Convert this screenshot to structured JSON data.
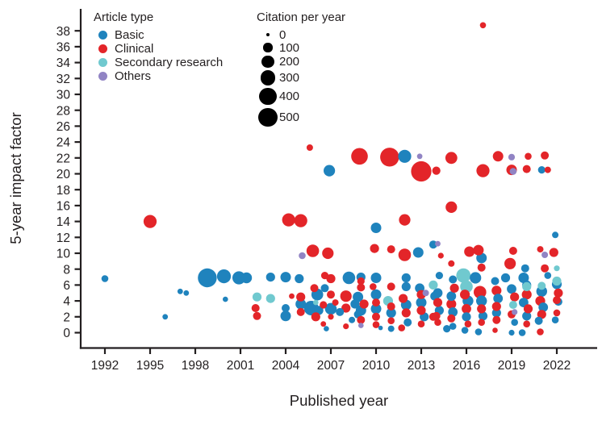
{
  "chart_data": {
    "type": "scatter",
    "xlabel": "Published year",
    "ylabel": "5-year impact factor",
    "x_ticks": [
      1992,
      1995,
      1998,
      2001,
      2004,
      2007,
      2010,
      2013,
      2016,
      2019,
      2022
    ],
    "y_ticks": [
      0,
      2,
      4,
      6,
      8,
      10,
      12,
      14,
      16,
      18,
      20,
      22,
      24,
      26,
      28,
      30,
      32,
      34,
      36,
      38
    ],
    "xlim": [
      1990.4,
      2024.6
    ],
    "ylim": [
      -1.9,
      40.9
    ],
    "grid": false,
    "legend": {
      "title": "Article type",
      "position": "top-left-inside",
      "items": [
        {
          "label": "Basic",
          "color": "#1f83bd"
        },
        {
          "label": "Clinical",
          "color": "#e32529"
        },
        {
          "label": "Secondary research",
          "color": "#70c9cf"
        },
        {
          "label": "Others",
          "color": "#9184c4"
        }
      ]
    },
    "size_legend": {
      "title": "Citation per year",
      "values": [
        0,
        100,
        200,
        300,
        400,
        500
      ],
      "color": "#000000"
    },
    "point_format": [
      "published_year",
      "five_year_impact_factor",
      "citations_per_year"
    ],
    "series": [
      {
        "name": "Basic",
        "color": "#1f83bd",
        "points": [
          [
            1992,
            6.8,
            50
          ],
          [
            1996,
            2,
            25
          ],
          [
            1997,
            5.2,
            25
          ],
          [
            1997.4,
            5,
            25
          ],
          [
            1998.8,
            6.9,
            500
          ],
          [
            1999.9,
            7.1,
            260
          ],
          [
            2000.9,
            6.9,
            230
          ],
          [
            2001.4,
            6.9,
            150
          ],
          [
            2000,
            4.2,
            20
          ],
          [
            2003,
            7,
            100
          ],
          [
            2004,
            7,
            140
          ],
          [
            2004.9,
            6.8,
            100
          ],
          [
            2004,
            3.1,
            75
          ],
          [
            2004,
            2.1,
            140
          ],
          [
            2005,
            3.6,
            140
          ],
          [
            2005.7,
            3.1,
            290
          ],
          [
            2006.1,
            4.8,
            180
          ],
          [
            2006.2,
            2.8,
            100
          ],
          [
            2006.6,
            5.6,
            75
          ],
          [
            2006.7,
            0.5,
            20
          ],
          [
            2007,
            3,
            180
          ],
          [
            2007.6,
            2.6,
            75
          ],
          [
            2006.9,
            20.4,
            170
          ],
          [
            2008.2,
            6.9,
            210
          ],
          [
            2008.6,
            3.6,
            100
          ],
          [
            2008.8,
            2.3,
            75
          ],
          [
            2008.8,
            4.5,
            140
          ],
          [
            2008.4,
            1.6,
            40
          ],
          [
            2009,
            7,
            100
          ],
          [
            2009,
            2.8,
            140
          ],
          [
            2010,
            13.2,
            140
          ],
          [
            2010,
            6.9,
            140
          ],
          [
            2010,
            4.8,
            140
          ],
          [
            2010,
            3,
            140
          ],
          [
            2010.3,
            0.6,
            10
          ],
          [
            2011,
            2.5,
            120
          ],
          [
            2011,
            0.5,
            40
          ],
          [
            2011.9,
            22.2,
            230
          ],
          [
            2012,
            6.9,
            100
          ],
          [
            2012,
            5.8,
            100
          ],
          [
            2012,
            3.5,
            140
          ],
          [
            2012.1,
            1.3,
            75
          ],
          [
            2012.8,
            10.1,
            140
          ],
          [
            2012.9,
            5.6,
            110
          ],
          [
            2013,
            3.8,
            140
          ],
          [
            2013.2,
            2,
            100
          ],
          [
            2013.8,
            11.1,
            75
          ],
          [
            2014.2,
            7.2,
            60
          ],
          [
            2013.9,
            4.6,
            100
          ],
          [
            2014.1,
            5,
            110
          ],
          [
            2014.2,
            2.8,
            100
          ],
          [
            2014.7,
            0.5,
            60
          ],
          [
            2015,
            4.6,
            110
          ],
          [
            2015.1,
            2.6,
            110
          ],
          [
            2015.1,
            0.8,
            50
          ],
          [
            2015.1,
            6.7,
            75
          ],
          [
            2016.1,
            4,
            150
          ],
          [
            2016,
            2,
            100
          ],
          [
            2015.9,
            0.3,
            50
          ],
          [
            2016.6,
            6.9,
            170
          ],
          [
            2016.8,
            0.1,
            50
          ],
          [
            2017,
            9.4,
            140
          ],
          [
            2017,
            4,
            150
          ],
          [
            2017.1,
            2.1,
            100
          ],
          [
            2017.9,
            6.5,
            75
          ],
          [
            2018.1,
            4.3,
            110
          ],
          [
            2018,
            2.5,
            100
          ],
          [
            2018.6,
            6.9,
            100
          ],
          [
            2019,
            5.5,
            110
          ],
          [
            2019.2,
            1.3,
            50
          ],
          [
            2019,
            0,
            30
          ],
          [
            2019.8,
            6.9,
            140
          ],
          [
            2019.9,
            8.1,
            75
          ],
          [
            2019.8,
            3.8,
            110
          ],
          [
            2020,
            2.1,
            100
          ],
          [
            2020,
            6,
            100
          ],
          [
            2019.7,
            0,
            50
          ],
          [
            2021,
            20.5,
            60
          ],
          [
            2021,
            5.2,
            150
          ],
          [
            2021.1,
            3.2,
            110
          ],
          [
            2020.8,
            1.5,
            75
          ],
          [
            2021.4,
            7.2,
            50
          ],
          [
            2021.9,
            12.3,
            40
          ],
          [
            2022,
            6.1,
            120
          ],
          [
            2022.1,
            3.9,
            75
          ],
          [
            2021.9,
            1.6,
            50
          ]
        ]
      },
      {
        "name": "Clinical",
        "color": "#e32529",
        "points": [
          [
            1995,
            14,
            230
          ],
          [
            2002,
            3.1,
            75
          ],
          [
            2002.1,
            2.1,
            75
          ],
          [
            2004.2,
            14.2,
            230
          ],
          [
            2005,
            14.1,
            230
          ],
          [
            2004.4,
            4.6,
            25
          ],
          [
            2005,
            4.5,
            100
          ],
          [
            2005,
            2.6,
            75
          ],
          [
            2005.9,
            5.6,
            75
          ],
          [
            2005.6,
            23.3,
            40
          ],
          [
            2005.8,
            10.3,
            210
          ],
          [
            2006,
            2,
            100
          ],
          [
            2006.5,
            3.5,
            60
          ],
          [
            2006.5,
            1.1,
            25
          ],
          [
            2006.8,
            10,
            170
          ],
          [
            2006.6,
            7.2,
            60
          ],
          [
            2007,
            6.8,
            100
          ],
          [
            2007,
            4.8,
            75
          ],
          [
            2007,
            2,
            30
          ],
          [
            2007.3,
            3.8,
            40
          ],
          [
            2008,
            4.6,
            170
          ],
          [
            2008,
            3.1,
            100
          ],
          [
            2008,
            0.8,
            30
          ],
          [
            2008.9,
            22.2,
            380
          ],
          [
            2009,
            6.5,
            60
          ],
          [
            2009,
            5.7,
            75
          ],
          [
            2009.2,
            3.6,
            100
          ],
          [
            2009,
            1.6,
            75
          ],
          [
            2009.8,
            5.8,
            50
          ],
          [
            2009.9,
            10.6,
            100
          ],
          [
            2010,
            3.8,
            75
          ],
          [
            2010,
            2,
            75
          ],
          [
            2010,
            1,
            50
          ],
          [
            2010.9,
            22.1,
            500
          ],
          [
            2011,
            10.5,
            75
          ],
          [
            2011,
            5.8,
            75
          ],
          [
            2011,
            3.3,
            75
          ],
          [
            2011,
            1.5,
            50
          ],
          [
            2011.7,
            0.6,
            50
          ],
          [
            2011.9,
            14.2,
            170
          ],
          [
            2011.9,
            9.8,
            210
          ],
          [
            2011.8,
            4.3,
            100
          ],
          [
            2012,
            2.5,
            100
          ],
          [
            2013,
            20.3,
            580
          ],
          [
            2013,
            4.8,
            100
          ],
          [
            2013,
            2.8,
            100
          ],
          [
            2013,
            1.1,
            50
          ],
          [
            2013.8,
            2,
            75
          ],
          [
            2014,
            20.4,
            80
          ],
          [
            2014.3,
            9.7,
            30
          ],
          [
            2014.1,
            3.8,
            100
          ],
          [
            2014,
            2.1,
            75
          ],
          [
            2014.1,
            1.3,
            50
          ],
          [
            2015,
            22,
            190
          ],
          [
            2015,
            15.8,
            170
          ],
          [
            2015,
            8.7,
            40
          ],
          [
            2015.2,
            5.6,
            100
          ],
          [
            2015,
            3.6,
            120
          ],
          [
            2015,
            1.8,
            75
          ],
          [
            2016.2,
            10.2,
            140
          ],
          [
            2015.9,
            4.8,
            120
          ],
          [
            2016,
            3,
            110
          ],
          [
            2016.1,
            1.1,
            50
          ],
          [
            2017.1,
            20.4,
            230
          ],
          [
            2016.8,
            10.4,
            140
          ],
          [
            2017,
            8.2,
            75
          ],
          [
            2016.9,
            5.1,
            210
          ],
          [
            2017,
            3,
            100
          ],
          [
            2017,
            1.3,
            50
          ],
          [
            2018.1,
            22.2,
            140
          ],
          [
            2018,
            5.3,
            120
          ],
          [
            2018,
            3.3,
            100
          ],
          [
            2018,
            1.6,
            75
          ],
          [
            2017.9,
            0.3,
            20
          ],
          [
            2019,
            20.5,
            140
          ],
          [
            2018.9,
            8.7,
            170
          ],
          [
            2019.1,
            10.3,
            75
          ],
          [
            2019.2,
            4.5,
            100
          ],
          [
            2019,
            2.3,
            75
          ],
          [
            2020.1,
            22.2,
            50
          ],
          [
            2020,
            20.6,
            75
          ],
          [
            2020,
            4.8,
            120
          ],
          [
            2020.1,
            3,
            100
          ],
          [
            2020,
            1.1,
            50
          ],
          [
            2020.9,
            0.1,
            50
          ],
          [
            2021.2,
            22.3,
            75
          ],
          [
            2021.4,
            20.5,
            40
          ],
          [
            2020.9,
            10.5,
            40
          ],
          [
            2021.2,
            8.1,
            75
          ],
          [
            2020.9,
            4,
            120
          ],
          [
            2021,
            2.3,
            100
          ],
          [
            2021.8,
            10.1,
            100
          ],
          [
            2022.1,
            5,
            100
          ],
          [
            2022,
            4.1,
            75
          ],
          [
            2022,
            2.5,
            50
          ],
          [
            2017.1,
            38.7,
            35
          ]
        ]
      },
      {
        "name": "Secondary research",
        "color": "#70c9cf",
        "points": [
          [
            2002.1,
            4.5,
            100
          ],
          [
            2003,
            4.3,
            100
          ],
          [
            2006,
            3.8,
            20
          ],
          [
            2010.8,
            4,
            120
          ],
          [
            2013.8,
            6,
            100
          ],
          [
            2015.8,
            7.2,
            280
          ],
          [
            2016,
            5.8,
            210
          ],
          [
            2019.1,
            3.5,
            75
          ],
          [
            2020,
            5.8,
            100
          ],
          [
            2021,
            5.9,
            75
          ],
          [
            2022,
            8.1,
            30
          ],
          [
            2022,
            6.5,
            100
          ]
        ]
      },
      {
        "name": "Others",
        "color": "#9184c4",
        "points": [
          [
            2005.1,
            9.7,
            50
          ],
          [
            2009,
            0.9,
            20
          ],
          [
            2012.9,
            22.2,
            25
          ],
          [
            2013.3,
            5,
            40
          ],
          [
            2014.1,
            11.2,
            25
          ],
          [
            2019,
            22.1,
            45
          ],
          [
            2019.1,
            20.3,
            50
          ],
          [
            2019.2,
            2.6,
            30
          ],
          [
            2021.2,
            9.8,
            40
          ]
        ]
      }
    ]
  }
}
